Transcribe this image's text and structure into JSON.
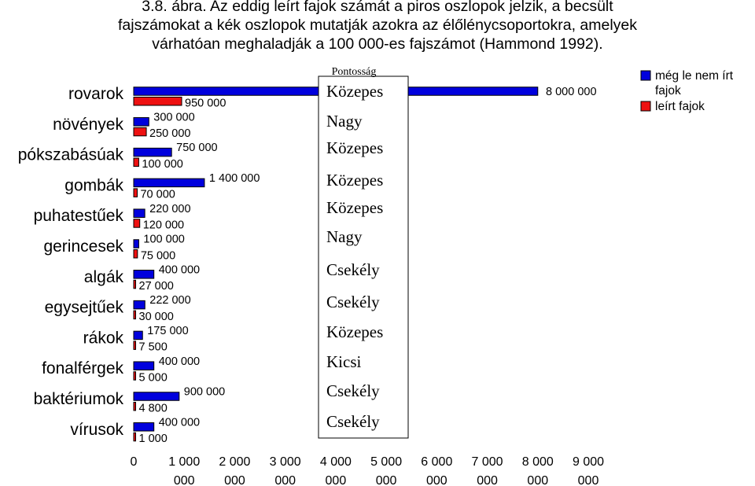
{
  "caption": {
    "line1": "3.8. ábra. Az eddig leírt fajok számát a piros oszlopok jelzik, a becsült",
    "line2": "fajszámokat a kék oszlopok mutatják azokra az élőlénycsoportokra, amelyek",
    "line3": "várhatóan meghaladják a 100 000-es fajszámot (Hammond 1992)."
  },
  "chart_data": {
    "type": "bar",
    "orientation": "horizontal",
    "categories": [
      "rovarok",
      "növények",
      "pókszabásúak",
      "gombák",
      "puhatestűek",
      "gerincesek",
      "algák",
      "egysejtűek",
      "rákok",
      "fonalférgek",
      "baktériumok",
      "vírusok"
    ],
    "series": [
      {
        "name": "még le nem írt fajok",
        "color": "#0000dd",
        "values": [
          8000000,
          300000,
          750000,
          1400000,
          220000,
          100000,
          400000,
          222000,
          175000,
          400000,
          900000,
          400000
        ],
        "labels": [
          "8 000 000",
          "300 000",
          "750 000",
          "1 400 000",
          "220 000",
          "100 000",
          "400 000",
          "222 000",
          "175 000",
          "400 000",
          "900 000",
          "400 000"
        ]
      },
      {
        "name": "leírt fajok",
        "color": "#ee1111",
        "values": [
          950000,
          250000,
          100000,
          70000,
          120000,
          75000,
          27000,
          30000,
          7500,
          5000,
          4800,
          1000
        ],
        "labels": [
          "950 000",
          "250 000",
          "100 000",
          "70 000",
          "120 000",
          "75 000",
          "27 000",
          "30 000",
          "7 500",
          "5 000",
          "4 800",
          "1 000"
        ]
      }
    ],
    "xlim": [
      0,
      9000000
    ],
    "xticks": [
      0,
      1000000,
      2000000,
      3000000,
      4000000,
      5000000,
      6000000,
      7000000,
      8000000,
      9000000
    ],
    "xtick_labels": [
      [
        "0"
      ],
      [
        "1 000",
        "000"
      ],
      [
        "2 000",
        "000"
      ],
      [
        "3 000",
        "000"
      ],
      [
        "4 000",
        "000"
      ],
      [
        "5 000",
        "000"
      ],
      [
        "6 000",
        "000"
      ],
      [
        "7 000",
        "000"
      ],
      [
        "8 000",
        "000"
      ],
      [
        "9 000",
        "000"
      ]
    ],
    "legend": {
      "position": "top-right",
      "entries": [
        [
          "még le nem írt",
          "fajok"
        ],
        [
          "leírt fajok"
        ]
      ]
    },
    "grid": false
  },
  "rating_box": {
    "title": "Pontosság",
    "values": [
      "Közepes",
      "Nagy",
      "Közepes",
      "Közepes",
      "Közepes",
      "Nagy",
      "Csekély",
      "Csekély",
      "Közepes",
      "Kicsi",
      "Csekély",
      "Csekély"
    ]
  }
}
